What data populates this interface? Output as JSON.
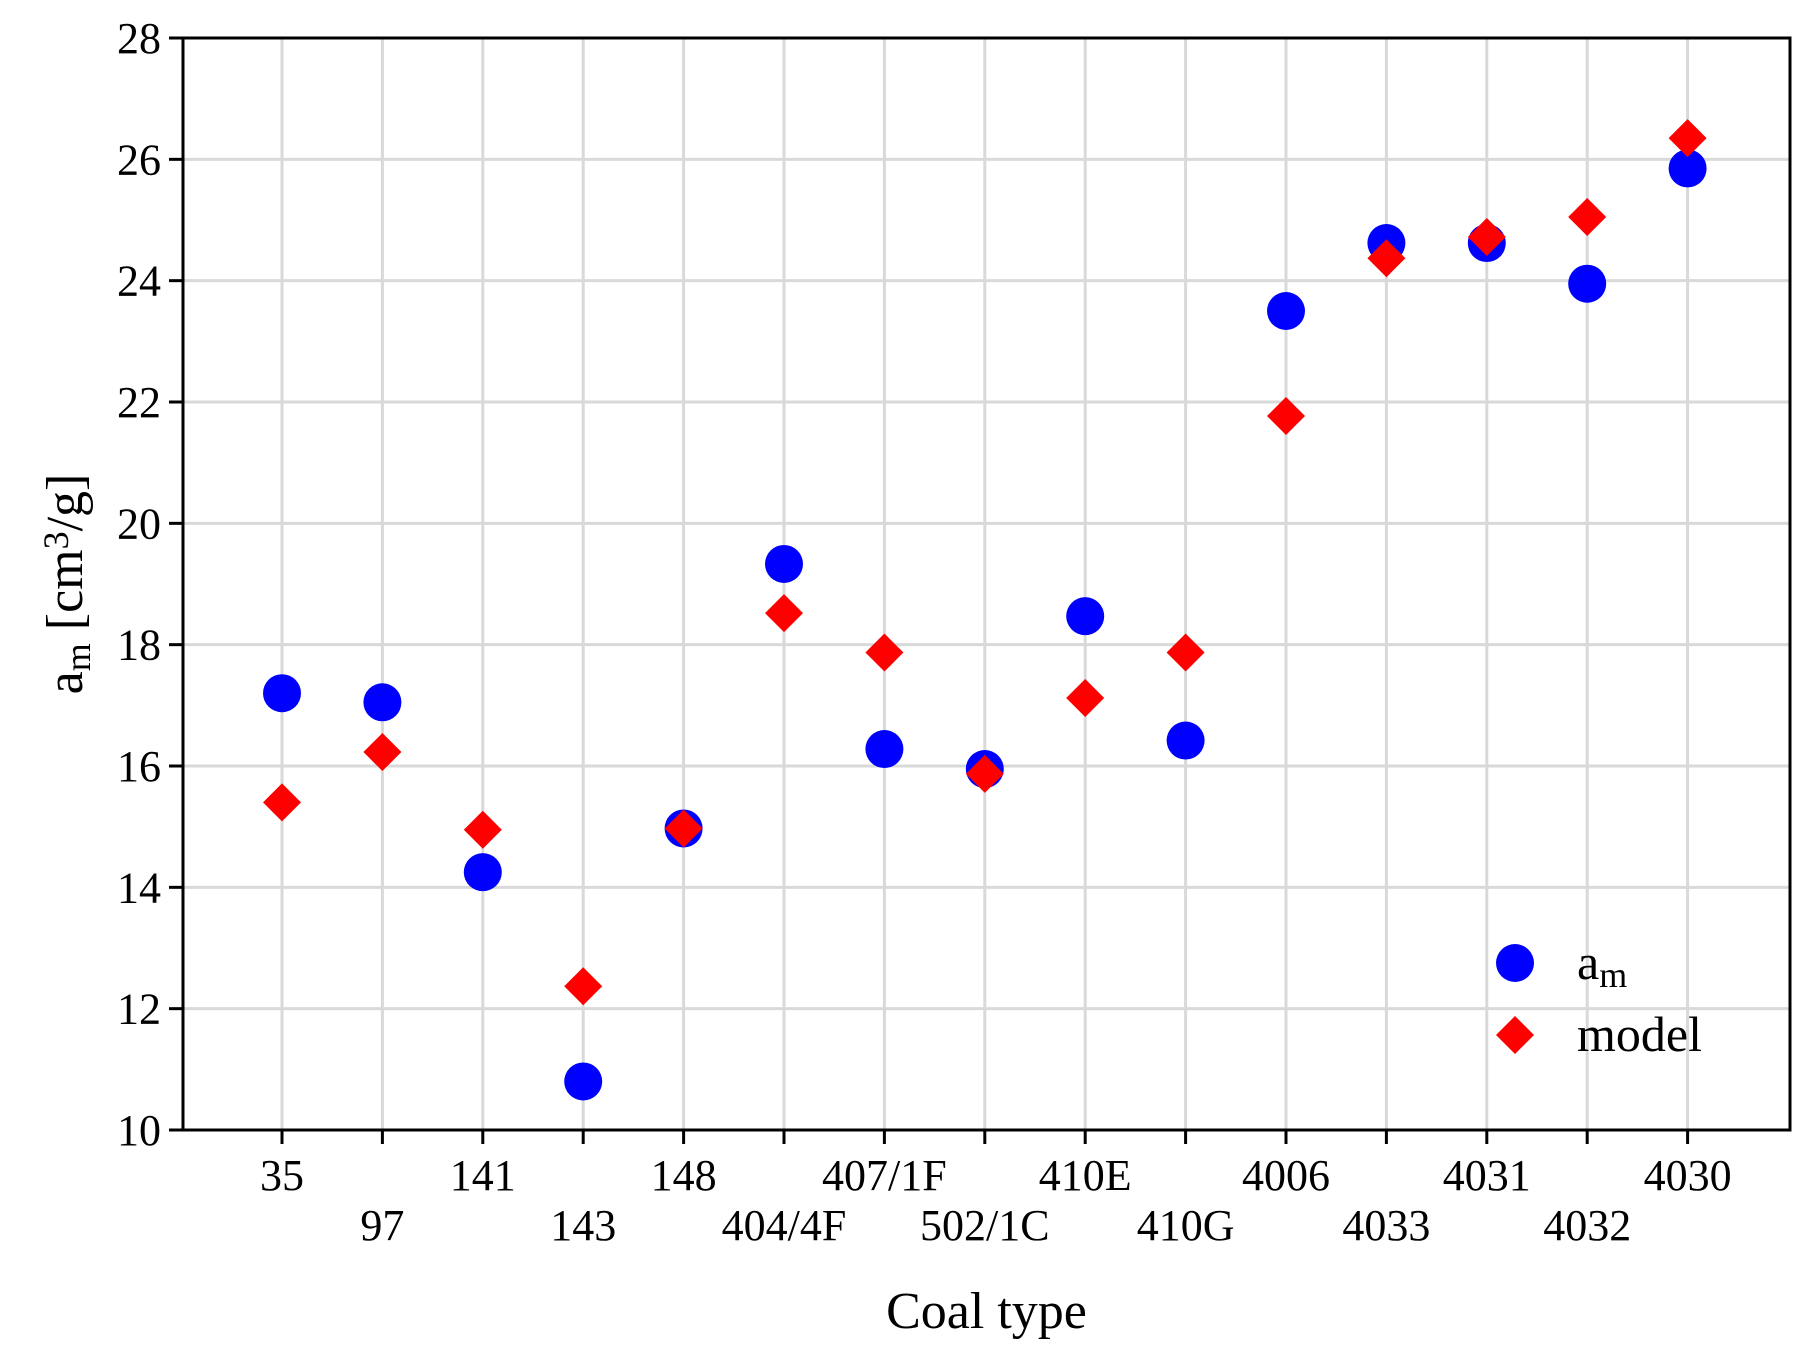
{
  "chart_data": {
    "type": "scatter",
    "title": "",
    "xlabel": "Coal type",
    "ylabel": {
      "base": "a",
      "sub": "m",
      "mid": " [cm",
      "sup": "3",
      "end": "/g]"
    },
    "categories": [
      "35",
      "97",
      "141",
      "143",
      "148",
      "404/4F",
      "407/1F",
      "502/1C",
      "410E",
      "410G",
      "4006",
      "4033",
      "4031",
      "4032",
      "4030"
    ],
    "ylim": [
      10,
      28
    ],
    "yticks": [
      10,
      12,
      14,
      16,
      18,
      20,
      22,
      24,
      26,
      28
    ],
    "grid": true,
    "legend_position": "bottom-right",
    "series": [
      {
        "name": "a_m",
        "legend": {
          "base": "a",
          "sub": "m"
        },
        "marker": "circle",
        "color": "#0000ff",
        "values": [
          17.2,
          17.05,
          14.25,
          10.8,
          14.97,
          19.33,
          16.28,
          15.95,
          18.47,
          16.42,
          23.5,
          24.62,
          24.62,
          23.95,
          25.85
        ]
      },
      {
        "name": "model",
        "legend": {
          "base": "model",
          "sub": ""
        },
        "marker": "diamond",
        "color": "#ff0000",
        "values": [
          15.4,
          16.23,
          14.95,
          12.37,
          14.97,
          18.52,
          17.87,
          15.87,
          17.12,
          17.87,
          21.77,
          24.37,
          24.72,
          25.05,
          26.35
        ]
      }
    ]
  }
}
